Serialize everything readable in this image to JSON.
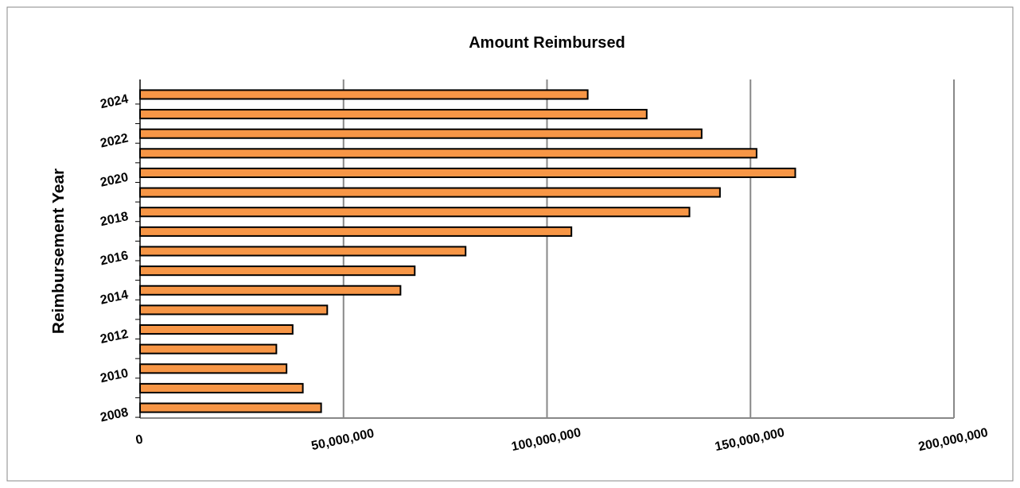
{
  "chart_data": {
    "type": "bar",
    "orientation": "horizontal",
    "title": "Amount Reimbursed",
    "ylabel": "Reimbursement Year",
    "categories": [
      "2024",
      null,
      "2022",
      null,
      "2020",
      null,
      "2018",
      null,
      "2016",
      null,
      "2014",
      null,
      "2012",
      null,
      "2010",
      null,
      "2008"
    ],
    "values": [
      110000000,
      124500000,
      138000000,
      151500000,
      161000000,
      142500000,
      135000000,
      106000000,
      80000000,
      67500000,
      64000000,
      46000000,
      37500000,
      33500000,
      36000000,
      40000000,
      44500000
    ],
    "color": "#f79646",
    "xlim": [
      0,
      200000000
    ],
    "xticks": [
      {
        "value": 0,
        "label": "0"
      },
      {
        "value": 50000000,
        "label": "50,000,000"
      },
      {
        "value": 100000000,
        "label": "100,000,000"
      },
      {
        "value": 150000000,
        "label": "150,000,000"
      },
      {
        "value": 200000000,
        "label": "200,000,000"
      }
    ],
    "grid": "x"
  }
}
